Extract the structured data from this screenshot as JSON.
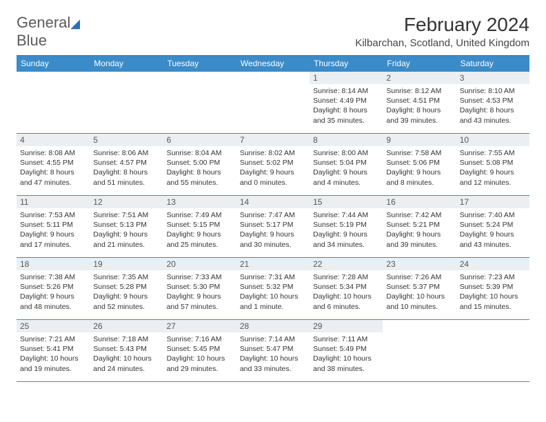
{
  "brand": {
    "name_a": "General",
    "name_b": "Blue"
  },
  "title": "February 2024",
  "location": "Kilbarchan, Scotland, United Kingdom",
  "day_headers": [
    "Sunday",
    "Monday",
    "Tuesday",
    "Wednesday",
    "Thursday",
    "Friday",
    "Saturday"
  ],
  "colors": {
    "header_bg": "#3b8bc8",
    "header_text": "#ffffff",
    "border": "#3b8bc8",
    "daynum_bg": "#eceff1",
    "text": "#333333",
    "brand_gray": "#5a5a5a",
    "brand_blue": "#2a6fb5"
  },
  "weeks": [
    [
      null,
      null,
      null,
      null,
      {
        "n": "1",
        "sunrise": "Sunrise: 8:14 AM",
        "sunset": "Sunset: 4:49 PM",
        "daylight1": "Daylight: 8 hours",
        "daylight2": "and 35 minutes."
      },
      {
        "n": "2",
        "sunrise": "Sunrise: 8:12 AM",
        "sunset": "Sunset: 4:51 PM",
        "daylight1": "Daylight: 8 hours",
        "daylight2": "and 39 minutes."
      },
      {
        "n": "3",
        "sunrise": "Sunrise: 8:10 AM",
        "sunset": "Sunset: 4:53 PM",
        "daylight1": "Daylight: 8 hours",
        "daylight2": "and 43 minutes."
      }
    ],
    [
      {
        "n": "4",
        "sunrise": "Sunrise: 8:08 AM",
        "sunset": "Sunset: 4:55 PM",
        "daylight1": "Daylight: 8 hours",
        "daylight2": "and 47 minutes."
      },
      {
        "n": "5",
        "sunrise": "Sunrise: 8:06 AM",
        "sunset": "Sunset: 4:57 PM",
        "daylight1": "Daylight: 8 hours",
        "daylight2": "and 51 minutes."
      },
      {
        "n": "6",
        "sunrise": "Sunrise: 8:04 AM",
        "sunset": "Sunset: 5:00 PM",
        "daylight1": "Daylight: 8 hours",
        "daylight2": "and 55 minutes."
      },
      {
        "n": "7",
        "sunrise": "Sunrise: 8:02 AM",
        "sunset": "Sunset: 5:02 PM",
        "daylight1": "Daylight: 9 hours",
        "daylight2": "and 0 minutes."
      },
      {
        "n": "8",
        "sunrise": "Sunrise: 8:00 AM",
        "sunset": "Sunset: 5:04 PM",
        "daylight1": "Daylight: 9 hours",
        "daylight2": "and 4 minutes."
      },
      {
        "n": "9",
        "sunrise": "Sunrise: 7:58 AM",
        "sunset": "Sunset: 5:06 PM",
        "daylight1": "Daylight: 9 hours",
        "daylight2": "and 8 minutes."
      },
      {
        "n": "10",
        "sunrise": "Sunrise: 7:55 AM",
        "sunset": "Sunset: 5:08 PM",
        "daylight1": "Daylight: 9 hours",
        "daylight2": "and 12 minutes."
      }
    ],
    [
      {
        "n": "11",
        "sunrise": "Sunrise: 7:53 AM",
        "sunset": "Sunset: 5:11 PM",
        "daylight1": "Daylight: 9 hours",
        "daylight2": "and 17 minutes."
      },
      {
        "n": "12",
        "sunrise": "Sunrise: 7:51 AM",
        "sunset": "Sunset: 5:13 PM",
        "daylight1": "Daylight: 9 hours",
        "daylight2": "and 21 minutes."
      },
      {
        "n": "13",
        "sunrise": "Sunrise: 7:49 AM",
        "sunset": "Sunset: 5:15 PM",
        "daylight1": "Daylight: 9 hours",
        "daylight2": "and 25 minutes."
      },
      {
        "n": "14",
        "sunrise": "Sunrise: 7:47 AM",
        "sunset": "Sunset: 5:17 PM",
        "daylight1": "Daylight: 9 hours",
        "daylight2": "and 30 minutes."
      },
      {
        "n": "15",
        "sunrise": "Sunrise: 7:44 AM",
        "sunset": "Sunset: 5:19 PM",
        "daylight1": "Daylight: 9 hours",
        "daylight2": "and 34 minutes."
      },
      {
        "n": "16",
        "sunrise": "Sunrise: 7:42 AM",
        "sunset": "Sunset: 5:21 PM",
        "daylight1": "Daylight: 9 hours",
        "daylight2": "and 39 minutes."
      },
      {
        "n": "17",
        "sunrise": "Sunrise: 7:40 AM",
        "sunset": "Sunset: 5:24 PM",
        "daylight1": "Daylight: 9 hours",
        "daylight2": "and 43 minutes."
      }
    ],
    [
      {
        "n": "18",
        "sunrise": "Sunrise: 7:38 AM",
        "sunset": "Sunset: 5:26 PM",
        "daylight1": "Daylight: 9 hours",
        "daylight2": "and 48 minutes."
      },
      {
        "n": "19",
        "sunrise": "Sunrise: 7:35 AM",
        "sunset": "Sunset: 5:28 PM",
        "daylight1": "Daylight: 9 hours",
        "daylight2": "and 52 minutes."
      },
      {
        "n": "20",
        "sunrise": "Sunrise: 7:33 AM",
        "sunset": "Sunset: 5:30 PM",
        "daylight1": "Daylight: 9 hours",
        "daylight2": "and 57 minutes."
      },
      {
        "n": "21",
        "sunrise": "Sunrise: 7:31 AM",
        "sunset": "Sunset: 5:32 PM",
        "daylight1": "Daylight: 10 hours",
        "daylight2": "and 1 minute."
      },
      {
        "n": "22",
        "sunrise": "Sunrise: 7:28 AM",
        "sunset": "Sunset: 5:34 PM",
        "daylight1": "Daylight: 10 hours",
        "daylight2": "and 6 minutes."
      },
      {
        "n": "23",
        "sunrise": "Sunrise: 7:26 AM",
        "sunset": "Sunset: 5:37 PM",
        "daylight1": "Daylight: 10 hours",
        "daylight2": "and 10 minutes."
      },
      {
        "n": "24",
        "sunrise": "Sunrise: 7:23 AM",
        "sunset": "Sunset: 5:39 PM",
        "daylight1": "Daylight: 10 hours",
        "daylight2": "and 15 minutes."
      }
    ],
    [
      {
        "n": "25",
        "sunrise": "Sunrise: 7:21 AM",
        "sunset": "Sunset: 5:41 PM",
        "daylight1": "Daylight: 10 hours",
        "daylight2": "and 19 minutes."
      },
      {
        "n": "26",
        "sunrise": "Sunrise: 7:18 AM",
        "sunset": "Sunset: 5:43 PM",
        "daylight1": "Daylight: 10 hours",
        "daylight2": "and 24 minutes."
      },
      {
        "n": "27",
        "sunrise": "Sunrise: 7:16 AM",
        "sunset": "Sunset: 5:45 PM",
        "daylight1": "Daylight: 10 hours",
        "daylight2": "and 29 minutes."
      },
      {
        "n": "28",
        "sunrise": "Sunrise: 7:14 AM",
        "sunset": "Sunset: 5:47 PM",
        "daylight1": "Daylight: 10 hours",
        "daylight2": "and 33 minutes."
      },
      {
        "n": "29",
        "sunrise": "Sunrise: 7:11 AM",
        "sunset": "Sunset: 5:49 PM",
        "daylight1": "Daylight: 10 hours",
        "daylight2": "and 38 minutes."
      },
      null,
      null
    ]
  ]
}
